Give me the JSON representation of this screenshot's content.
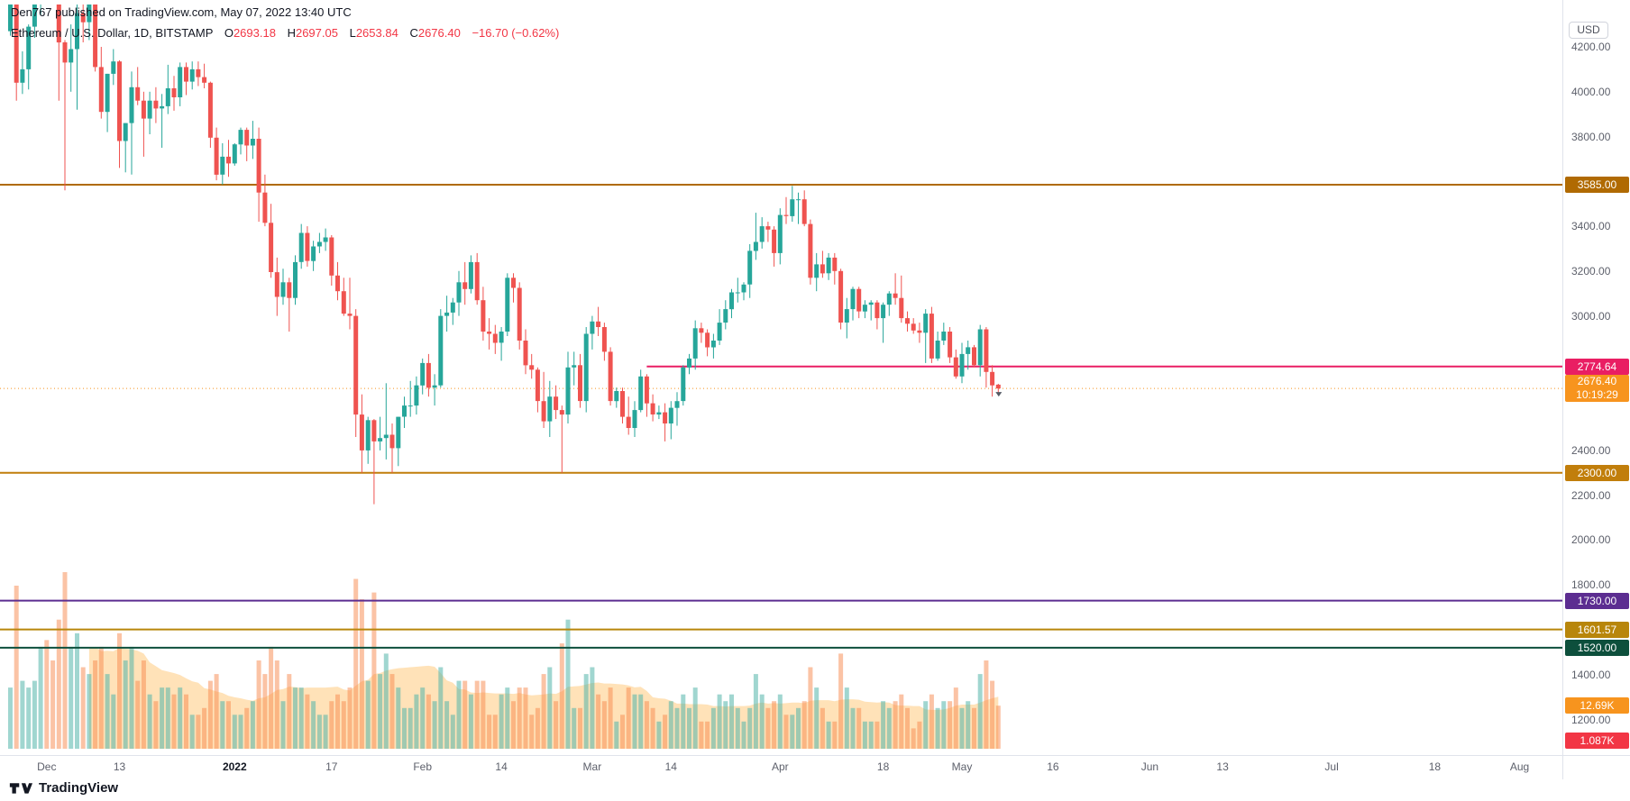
{
  "header": {
    "text": "Den767 published on TradingView.com, May 07, 2022 13:40 UTC"
  },
  "legend": {
    "title": "Ethereum / U.S. Dollar, 1D, BITSTAMP",
    "o_label": "O",
    "o": "2693.18",
    "h_label": "H",
    "h": "2697.05",
    "l_label": "L",
    "l": "2653.84",
    "c_label": "C",
    "c": "2676.40",
    "change": "−16.70 (−0.62%)"
  },
  "price_axis": {
    "unit": "USD",
    "ticks": [
      {
        "value": 4200,
        "label": "4200.00"
      },
      {
        "value": 4000,
        "label": "4000.00"
      },
      {
        "value": 3800,
        "label": "3800.00"
      },
      {
        "value": 3400,
        "label": "3400.00"
      },
      {
        "value": 3200,
        "label": "3200.00"
      },
      {
        "value": 3000,
        "label": "3000.00"
      },
      {
        "value": 2400,
        "label": "2400.00"
      },
      {
        "value": 2200,
        "label": "2200.00"
      },
      {
        "value": 2000,
        "label": "2000.00"
      },
      {
        "value": 1800,
        "label": "1800.00"
      },
      {
        "value": 1400,
        "label": "1400.00"
      },
      {
        "value": 1200,
        "label": "1200.00"
      }
    ]
  },
  "time_axis": {
    "labels": [
      {
        "label": "Dec",
        "index": 6
      },
      {
        "label": "13",
        "index": 18
      },
      {
        "label": "2022",
        "index": 37,
        "year": true
      },
      {
        "label": "17",
        "index": 53
      },
      {
        "label": "Feb",
        "index": 68
      },
      {
        "label": "14",
        "index": 81
      },
      {
        "label": "Mar",
        "index": 96
      },
      {
        "label": "14",
        "index": 109
      },
      {
        "label": "Apr",
        "index": 127
      },
      {
        "label": "18",
        "index": 144
      },
      {
        "label": "May",
        "index": 157
      },
      {
        "label": "16",
        "index": 172
      },
      {
        "label": "Jun",
        "index": 188
      },
      {
        "label": "13",
        "index": 200
      },
      {
        "label": "Jul",
        "index": 218
      },
      {
        "label": "18",
        "index": 235
      },
      {
        "label": "Aug",
        "index": 249
      }
    ]
  },
  "footer": {
    "brand": "TradingView"
  },
  "chart_data": {
    "type": "candlestick",
    "title": "Ethereum / U.S. Dollar, 1D, BITSTAMP",
    "start_date": "2021-11-25",
    "end_date": "2022-05-07",
    "visible_price_range": [
      1080,
      4390
    ],
    "vol_ma_window": 14,
    "ohlc": [
      [
        4270,
        4550,
        4250,
        4520
      ],
      [
        4520,
        4550,
        3960,
        4040
      ],
      [
        4040,
        4180,
        3990,
        4100
      ],
      [
        4100,
        4300,
        4010,
        4290
      ],
      [
        4290,
        4460,
        4240,
        4445
      ],
      [
        4445,
        4770,
        4340,
        4630
      ],
      [
        4630,
        4780,
        4500,
        4590
      ],
      [
        4590,
        4650,
        4450,
        4520
      ],
      [
        4520,
        4570,
        3960,
        4220
      ],
      [
        4220,
        4230,
        3560,
        4130
      ],
      [
        4130,
        4300,
        4000,
        4190
      ],
      [
        4190,
        4400,
        3920,
        4350
      ],
      [
        4350,
        4430,
        4220,
        4310
      ],
      [
        4310,
        4450,
        4230,
        4440
      ],
      [
        4440,
        4490,
        4090,
        4110
      ],
      [
        4110,
        4200,
        3880,
        3910
      ],
      [
        3910,
        4080,
        3820,
        4080
      ],
      [
        4080,
        4190,
        4030,
        4135
      ],
      [
        4135,
        4140,
        3660,
        3780
      ],
      [
        3780,
        3860,
        3640,
        3860
      ],
      [
        3860,
        4090,
        3630,
        4020
      ],
      [
        4020,
        4110,
        3940,
        3960
      ],
      [
        3960,
        4000,
        3710,
        3880
      ],
      [
        3880,
        4000,
        3810,
        3960
      ],
      [
        3960,
        4020,
        3860,
        3925
      ],
      [
        3925,
        3990,
        3750,
        3935
      ],
      [
        3935,
        4120,
        3900,
        4015
      ],
      [
        4015,
        4070,
        3915,
        3975
      ],
      [
        3975,
        4130,
        3935,
        4110
      ],
      [
        4110,
        4130,
        3985,
        4045
      ],
      [
        4045,
        4135,
        4010,
        4100
      ],
      [
        4100,
        4135,
        4025,
        4065
      ],
      [
        4065,
        4125,
        4015,
        4040
      ],
      [
        4040,
        4045,
        3750,
        3795
      ],
      [
        3795,
        3840,
        3605,
        3630
      ],
      [
        3630,
        3770,
        3585,
        3710
      ],
      [
        3710,
        3785,
        3620,
        3680
      ],
      [
        3680,
        3770,
        3670,
        3765
      ],
      [
        3765,
        3840,
        3720,
        3830
      ],
      [
        3830,
        3840,
        3690,
        3760
      ],
      [
        3760,
        3870,
        3700,
        3790
      ],
      [
        3790,
        3840,
        3420,
        3550
      ],
      [
        3550,
        3630,
        3400,
        3415
      ],
      [
        3415,
        3500,
        3170,
        3195
      ],
      [
        3195,
        3260,
        3000,
        3085
      ],
      [
        3085,
        3210,
        3050,
        3150
      ],
      [
        3150,
        3170,
        2930,
        3080
      ],
      [
        3080,
        3270,
        3050,
        3240
      ],
      [
        3240,
        3410,
        3210,
        3370
      ],
      [
        3370,
        3400,
        3220,
        3245
      ],
      [
        3245,
        3335,
        3200,
        3310
      ],
      [
        3310,
        3370,
        3280,
        3330
      ],
      [
        3330,
        3390,
        3290,
        3350
      ],
      [
        3350,
        3360,
        3135,
        3180
      ],
      [
        3180,
        3240,
        3070,
        3110
      ],
      [
        3110,
        3170,
        3000,
        3010
      ],
      [
        3010,
        3170,
        2940,
        3000
      ],
      [
        3000,
        3030,
        2460,
        2560
      ],
      [
        2560,
        2650,
        2300,
        2400
      ],
      [
        2400,
        2550,
        2340,
        2535
      ],
      [
        2535,
        2540,
        2160,
        2440
      ],
      [
        2440,
        2550,
        2400,
        2455
      ],
      [
        2455,
        2700,
        2360,
        2470
      ],
      [
        2470,
        2520,
        2300,
        2410
      ],
      [
        2410,
        2550,
        2330,
        2550
      ],
      [
        2550,
        2640,
        2500,
        2600
      ],
      [
        2600,
        2710,
        2550,
        2600
      ],
      [
        2600,
        2730,
        2560,
        2690
      ],
      [
        2690,
        2810,
        2650,
        2790
      ],
      [
        2790,
        2830,
        2640,
        2680
      ],
      [
        2680,
        2740,
        2600,
        2690
      ],
      [
        2690,
        3030,
        2680,
        3000
      ],
      [
        3000,
        3090,
        2930,
        3015
      ],
      [
        3015,
        3080,
        2960,
        3060
      ],
      [
        3060,
        3200,
        3000,
        3150
      ],
      [
        3150,
        3240,
        3050,
        3120
      ],
      [
        3120,
        3270,
        3100,
        3240
      ],
      [
        3240,
        3280,
        3050,
        3070
      ],
      [
        3070,
        3130,
        2890,
        2930
      ],
      [
        2930,
        2990,
        2850,
        2920
      ],
      [
        2920,
        2960,
        2830,
        2880
      ],
      [
        2880,
        2950,
        2800,
        2930
      ],
      [
        2930,
        3190,
        2910,
        3170
      ],
      [
        3170,
        3190,
        3060,
        3125
      ],
      [
        3125,
        3150,
        2850,
        2890
      ],
      [
        2890,
        2940,
        2740,
        2780
      ],
      [
        2780,
        2830,
        2720,
        2760
      ],
      [
        2760,
        2770,
        2570,
        2620
      ],
      [
        2620,
        2750,
        2500,
        2530
      ],
      [
        2530,
        2710,
        2460,
        2640
      ],
      [
        2640,
        2690,
        2540,
        2580
      ],
      [
        2580,
        2600,
        2300,
        2560
      ],
      [
        2560,
        2840,
        2520,
        2770
      ],
      [
        2770,
        2840,
        2690,
        2780
      ],
      [
        2780,
        2830,
        2590,
        2620
      ],
      [
        2620,
        2950,
        2570,
        2920
      ],
      [
        2920,
        3000,
        2850,
        2975
      ],
      [
        2975,
        3040,
        2910,
        2950
      ],
      [
        2950,
        2970,
        2800,
        2840
      ],
      [
        2840,
        2860,
        2600,
        2620
      ],
      [
        2620,
        2680,
        2590,
        2665
      ],
      [
        2665,
        2680,
        2520,
        2550
      ],
      [
        2550,
        2640,
        2470,
        2500
      ],
      [
        2500,
        2620,
        2460,
        2580
      ],
      [
        2580,
        2760,
        2570,
        2730
      ],
      [
        2730,
        2740,
        2550,
        2610
      ],
      [
        2610,
        2650,
        2530,
        2560
      ],
      [
        2560,
        2600,
        2540,
        2570
      ],
      [
        2570,
        2610,
        2440,
        2520
      ],
      [
        2520,
        2620,
        2450,
        2590
      ],
      [
        2590,
        2660,
        2510,
        2620
      ],
      [
        2620,
        2780,
        2600,
        2770
      ],
      [
        2770,
        2830,
        2740,
        2810
      ],
      [
        2810,
        2980,
        2760,
        2945
      ],
      [
        2945,
        2970,
        2880,
        2925
      ],
      [
        2925,
        2940,
        2820,
        2860
      ],
      [
        2860,
        2920,
        2810,
        2890
      ],
      [
        2890,
        3030,
        2870,
        2970
      ],
      [
        2970,
        3070,
        2940,
        3030
      ],
      [
        3030,
        3120,
        2990,
        3105
      ],
      [
        3105,
        3170,
        3060,
        3105
      ],
      [
        3105,
        3150,
        3070,
        3140
      ],
      [
        3140,
        3320,
        3080,
        3290
      ],
      [
        3290,
        3460,
        3250,
        3330
      ],
      [
        3330,
        3440,
        3300,
        3400
      ],
      [
        3400,
        3420,
        3330,
        3385
      ],
      [
        3385,
        3400,
        3220,
        3280
      ],
      [
        3280,
        3480,
        3230,
        3450
      ],
      [
        3450,
        3530,
        3410,
        3445
      ],
      [
        3445,
        3580,
        3420,
        3520
      ],
      [
        3520,
        3550,
        3410,
        3520
      ],
      [
        3520,
        3560,
        3400,
        3410
      ],
      [
        3410,
        3430,
        3140,
        3170
      ],
      [
        3170,
        3280,
        3110,
        3230
      ],
      [
        3230,
        3290,
        3170,
        3190
      ],
      [
        3190,
        3280,
        3160,
        3260
      ],
      [
        3260,
        3280,
        3140,
        3200
      ],
      [
        3200,
        3210,
        2940,
        2970
      ],
      [
        2970,
        3080,
        2900,
        3030
      ],
      [
        3030,
        3130,
        2980,
        3120
      ],
      [
        3120,
        3130,
        2990,
        3020
      ],
      [
        3020,
        3070,
        2990,
        3050
      ],
      [
        3050,
        3070,
        2980,
        3060
      ],
      [
        3060,
        3070,
        2940,
        2990
      ],
      [
        2990,
        3060,
        2880,
        3050
      ],
      [
        3050,
        3110,
        3000,
        3100
      ],
      [
        3100,
        3190,
        3050,
        3080
      ],
      [
        3080,
        3180,
        2970,
        2990
      ],
      [
        2990,
        3020,
        2930,
        2965
      ],
      [
        2965,
        2990,
        2920,
        2935
      ],
      [
        2935,
        2970,
        2880,
        2925
      ],
      [
        2925,
        3030,
        2790,
        3010
      ],
      [
        3010,
        3040,
        2790,
        2810
      ],
      [
        2810,
        2930,
        2800,
        2890
      ],
      [
        2890,
        2970,
        2870,
        2930
      ],
      [
        2930,
        2950,
        2790,
        2815
      ],
      [
        2815,
        2850,
        2720,
        2730
      ],
      [
        2730,
        2880,
        2700,
        2830
      ],
      [
        2830,
        2890,
        2760,
        2860
      ],
      [
        2860,
        2870,
        2770,
        2780
      ],
      [
        2780,
        2960,
        2730,
        2940
      ],
      [
        2940,
        2950,
        2680,
        2750
      ],
      [
        2750,
        2780,
        2640,
        2690
      ],
      [
        2693.18,
        2697.05,
        2653.84,
        2676.4
      ]
    ],
    "volumes_k": [
      18,
      48,
      20,
      18,
      20,
      30,
      32,
      26,
      38,
      52,
      30,
      34,
      24,
      22,
      26,
      30,
      22,
      16,
      34,
      26,
      30,
      20,
      26,
      16,
      14,
      18,
      18,
      16,
      18,
      16,
      10,
      10,
      12,
      20,
      22,
      14,
      14,
      10,
      10,
      12,
      14,
      26,
      22,
      30,
      26,
      14,
      22,
      18,
      18,
      16,
      14,
      10,
      10,
      14,
      16,
      14,
      18,
      50,
      44,
      20,
      46,
      22,
      28,
      22,
      18,
      12,
      12,
      16,
      18,
      16,
      14,
      24,
      14,
      10,
      20,
      20,
      16,
      20,
      20,
      10,
      10,
      16,
      18,
      14,
      18,
      18,
      10,
      12,
      22,
      24,
      14,
      31,
      38,
      12,
      12,
      22,
      24,
      16,
      14,
      18,
      8,
      10,
      18,
      16,
      16,
      14,
      12,
      8,
      10,
      14,
      12,
      16,
      12,
      18,
      8,
      8,
      12,
      16,
      14,
      16,
      12,
      8,
      12,
      22,
      16,
      12,
      14,
      16,
      10,
      10,
      12,
      14,
      24,
      18,
      12,
      8,
      8,
      28,
      18,
      12,
      12,
      8,
      8,
      8,
      14,
      12,
      14,
      16,
      12,
      6,
      8,
      14,
      16,
      12,
      14,
      14,
      18,
      12,
      14,
      12,
      22,
      26,
      20,
      12.69
    ],
    "levels": [
      {
        "price": 3585.0,
        "label": "3585.00",
        "color": "#B06A02"
      },
      {
        "price": 2774.64,
        "label": "2774.64",
        "color": "#E91E63",
        "start_index": 105
      },
      {
        "price": 2300.0,
        "label": "2300.00",
        "color": "#C17E0B"
      },
      {
        "price": 1730.0,
        "label": "1730.00",
        "color": "#5C2D91"
      },
      {
        "price": 1601.57,
        "label": "1601.57",
        "color": "#B8860B"
      },
      {
        "price": 1520.0,
        "label": "1520.00",
        "color": "#0D4F3C"
      }
    ],
    "price_line": {
      "price": 2676.4,
      "label": "2676.40",
      "countdown": "10:19:29",
      "color": "#F7941E"
    },
    "volume_labels": {
      "last": "12.69K",
      "last_color": "#F7941E",
      "secondary": "1.087K",
      "secondary_color": "#F23645"
    },
    "colors": {
      "up": "#26A69A",
      "down": "#EF5350",
      "vol_up": "rgba(82,180,170,0.55)",
      "vol_down": "rgba(247,135,75,0.50)",
      "vol_ma_area": "rgba(255,152,0,0.28)",
      "marker": "#555a64"
    }
  }
}
